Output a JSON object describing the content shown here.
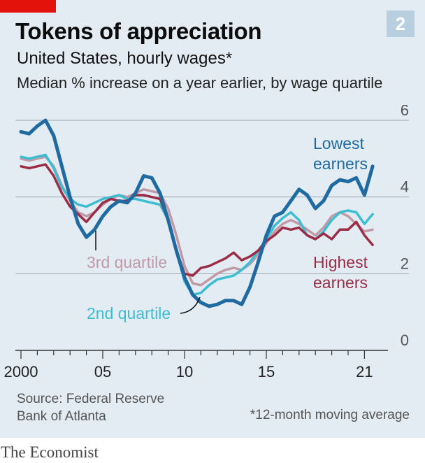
{
  "title": "Tokens of appreciation",
  "badge": "2",
  "subtitle": "United States, hourly wages*",
  "subtitle2": "Median % increase on a year earlier, by wage quartile",
  "source_line1": "Source: Federal Reserve",
  "source_line2": "Bank of Atlanta",
  "footnote": "*12-month moving average",
  "brand": "The Economist",
  "colors": {
    "background": "#e3ecf2",
    "grid": "#9aa8b2",
    "tag": "#e3120b",
    "lowest": "#1f6aa0",
    "second": "#3dbdd1",
    "third": "#c09aa6",
    "highest": "#9b2d46"
  },
  "chart_data": {
    "type": "line",
    "x_ticks": [
      2000,
      2005,
      2010,
      2015,
      2021
    ],
    "x_tick_labels": [
      "2000",
      "05",
      "10",
      "15",
      "21"
    ],
    "ylim": [
      0,
      6
    ],
    "y_ticks": [
      0,
      2,
      4,
      6
    ],
    "grid": true,
    "series": [
      {
        "name": "3rd quartile",
        "label_text": "3rd quartile",
        "color_key": "third",
        "points": [
          [
            2000.0,
            5.0
          ],
          [
            2000.5,
            4.95
          ],
          [
            2001.0,
            5.0
          ],
          [
            2001.5,
            5.05
          ],
          [
            2002.0,
            4.8
          ],
          [
            2002.5,
            4.3
          ],
          [
            2003.0,
            3.9
          ],
          [
            2003.5,
            3.6
          ],
          [
            2004.0,
            3.5
          ],
          [
            2004.5,
            3.6
          ],
          [
            2005.0,
            3.8
          ],
          [
            2005.5,
            3.95
          ],
          [
            2006.0,
            4.05
          ],
          [
            2006.5,
            4.0
          ],
          [
            2007.0,
            4.1
          ],
          [
            2007.5,
            4.2
          ],
          [
            2008.0,
            4.15
          ],
          [
            2008.5,
            4.1
          ],
          [
            2009.0,
            3.7
          ],
          [
            2009.5,
            3.0
          ],
          [
            2010.0,
            2.2
          ],
          [
            2010.5,
            1.75
          ],
          [
            2011.0,
            1.7
          ],
          [
            2011.5,
            1.85
          ],
          [
            2012.0,
            2.0
          ],
          [
            2012.5,
            2.1
          ],
          [
            2013.0,
            2.15
          ],
          [
            2013.5,
            2.1
          ],
          [
            2014.0,
            2.25
          ],
          [
            2014.5,
            2.5
          ],
          [
            2015.0,
            2.8
          ],
          [
            2015.5,
            3.1
          ],
          [
            2016.0,
            3.3
          ],
          [
            2016.5,
            3.4
          ],
          [
            2017.0,
            3.3
          ],
          [
            2017.5,
            3.15
          ],
          [
            2018.0,
            3.0
          ],
          [
            2018.5,
            3.2
          ],
          [
            2019.0,
            3.5
          ],
          [
            2019.5,
            3.6
          ],
          [
            2020.0,
            3.5
          ],
          [
            2020.5,
            3.3
          ],
          [
            2021.0,
            3.1
          ],
          [
            2021.5,
            3.15
          ]
        ]
      },
      {
        "name": "2nd quartile",
        "label_text": "2nd quartile",
        "color_key": "second",
        "points": [
          [
            2000.0,
            5.05
          ],
          [
            2000.5,
            5.0
          ],
          [
            2001.0,
            5.05
          ],
          [
            2001.5,
            5.1
          ],
          [
            2002.0,
            4.75
          ],
          [
            2002.5,
            4.25
          ],
          [
            2003.0,
            3.95
          ],
          [
            2003.5,
            3.8
          ],
          [
            2004.0,
            3.75
          ],
          [
            2004.5,
            3.85
          ],
          [
            2005.0,
            3.95
          ],
          [
            2005.5,
            4.0
          ],
          [
            2006.0,
            4.05
          ],
          [
            2006.5,
            3.95
          ],
          [
            2007.0,
            3.95
          ],
          [
            2007.5,
            3.9
          ],
          [
            2008.0,
            3.85
          ],
          [
            2008.5,
            3.8
          ],
          [
            2009.0,
            3.4
          ],
          [
            2009.5,
            2.6
          ],
          [
            2010.0,
            1.8
          ],
          [
            2010.5,
            1.45
          ],
          [
            2011.0,
            1.5
          ],
          [
            2011.5,
            1.7
          ],
          [
            2012.0,
            1.85
          ],
          [
            2012.5,
            1.9
          ],
          [
            2013.0,
            1.95
          ],
          [
            2013.5,
            2.1
          ],
          [
            2014.0,
            2.3
          ],
          [
            2014.5,
            2.6
          ],
          [
            2015.0,
            2.9
          ],
          [
            2015.5,
            3.25
          ],
          [
            2016.0,
            3.45
          ],
          [
            2016.5,
            3.6
          ],
          [
            2017.0,
            3.4
          ],
          [
            2017.5,
            3.0
          ],
          [
            2018.0,
            2.9
          ],
          [
            2018.5,
            3.1
          ],
          [
            2019.0,
            3.4
          ],
          [
            2019.5,
            3.6
          ],
          [
            2020.0,
            3.65
          ],
          [
            2020.5,
            3.6
          ],
          [
            2021.0,
            3.3
          ],
          [
            2021.5,
            3.55
          ]
        ]
      },
      {
        "name": "Highest earners",
        "label_text": "Highest earners",
        "color_key": "highest",
        "points": [
          [
            2000.0,
            4.8
          ],
          [
            2000.5,
            4.75
          ],
          [
            2001.0,
            4.8
          ],
          [
            2001.5,
            4.85
          ],
          [
            2002.0,
            4.55
          ],
          [
            2002.5,
            4.1
          ],
          [
            2003.0,
            3.75
          ],
          [
            2003.5,
            3.55
          ],
          [
            2004.0,
            3.35
          ],
          [
            2004.5,
            3.6
          ],
          [
            2005.0,
            3.85
          ],
          [
            2005.5,
            3.95
          ],
          [
            2006.0,
            3.9
          ],
          [
            2006.5,
            3.9
          ],
          [
            2007.0,
            4.05
          ],
          [
            2007.5,
            4.05
          ],
          [
            2008.0,
            4.0
          ],
          [
            2008.5,
            3.95
          ],
          [
            2009.0,
            3.4
          ],
          [
            2009.5,
            2.6
          ],
          [
            2010.0,
            2.0
          ],
          [
            2010.5,
            1.95
          ],
          [
            2011.0,
            2.15
          ],
          [
            2011.5,
            2.2
          ],
          [
            2012.0,
            2.3
          ],
          [
            2012.5,
            2.4
          ],
          [
            2013.0,
            2.55
          ],
          [
            2013.5,
            2.35
          ],
          [
            2014.0,
            2.45
          ],
          [
            2014.5,
            2.6
          ],
          [
            2015.0,
            2.85
          ],
          [
            2015.5,
            3.0
          ],
          [
            2016.0,
            3.2
          ],
          [
            2016.5,
            3.15
          ],
          [
            2017.0,
            3.2
          ],
          [
            2017.5,
            3.0
          ],
          [
            2018.0,
            2.9
          ],
          [
            2018.5,
            3.05
          ],
          [
            2019.0,
            2.9
          ],
          [
            2019.5,
            3.15
          ],
          [
            2020.0,
            3.15
          ],
          [
            2020.5,
            3.35
          ],
          [
            2021.0,
            3.0
          ],
          [
            2021.5,
            2.75
          ]
        ]
      },
      {
        "name": "Lowest earners",
        "label_text": "Lowest earners",
        "color_key": "lowest",
        "points": [
          [
            2000.0,
            5.7
          ],
          [
            2000.5,
            5.65
          ],
          [
            2001.0,
            5.85
          ],
          [
            2001.5,
            6.0
          ],
          [
            2002.0,
            5.6
          ],
          [
            2002.5,
            4.8
          ],
          [
            2003.0,
            4.0
          ],
          [
            2003.5,
            3.3
          ],
          [
            2004.0,
            2.95
          ],
          [
            2004.5,
            3.15
          ],
          [
            2005.0,
            3.5
          ],
          [
            2005.5,
            3.75
          ],
          [
            2006.0,
            3.9
          ],
          [
            2006.5,
            3.85
          ],
          [
            2007.0,
            4.1
          ],
          [
            2007.5,
            4.55
          ],
          [
            2008.0,
            4.5
          ],
          [
            2008.5,
            4.1
          ],
          [
            2009.0,
            3.4
          ],
          [
            2009.5,
            2.6
          ],
          [
            2010.0,
            1.9
          ],
          [
            2010.5,
            1.45
          ],
          [
            2011.0,
            1.25
          ],
          [
            2011.5,
            1.15
          ],
          [
            2012.0,
            1.2
          ],
          [
            2012.5,
            1.3
          ],
          [
            2013.0,
            1.3
          ],
          [
            2013.5,
            1.2
          ],
          [
            2014.0,
            1.65
          ],
          [
            2014.5,
            2.3
          ],
          [
            2015.0,
            3.0
          ],
          [
            2015.5,
            3.5
          ],
          [
            2016.0,
            3.6
          ],
          [
            2016.5,
            3.9
          ],
          [
            2017.0,
            4.2
          ],
          [
            2017.5,
            4.05
          ],
          [
            2018.0,
            3.7
          ],
          [
            2018.5,
            3.9
          ],
          [
            2019.0,
            4.3
          ],
          [
            2019.5,
            4.45
          ],
          [
            2020.0,
            4.4
          ],
          [
            2020.5,
            4.5
          ],
          [
            2021.0,
            4.05
          ],
          [
            2021.5,
            4.8
          ]
        ]
      }
    ]
  }
}
